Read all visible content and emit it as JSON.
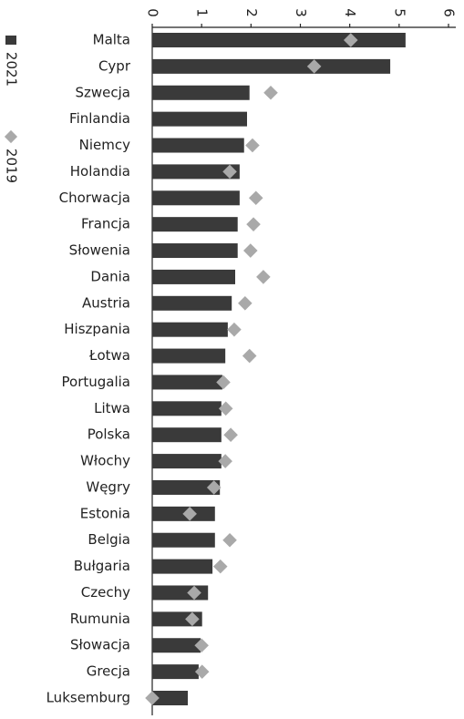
{
  "chart_data": {
    "type": "bar",
    "categories": [
      "Malta",
      "Cypr",
      "Szwecja",
      "Finlandia",
      "Niemcy",
      "Holandia",
      "Chorwacja",
      "Francja",
      "Słowenia",
      "Dania",
      "Austria",
      "Hiszpania",
      "Łotwa",
      "Portugalia",
      "Litwa",
      "Polska",
      "Włochy",
      "Węgry",
      "Estonia",
      "Belgia",
      "Bułgaria",
      "Czechy",
      "Rumunia",
      "Słowacja",
      "Grecja",
      "Luksemburg"
    ],
    "series": [
      {
        "name": "2021",
        "color": "#3a3a3a",
        "mark": "bar",
        "values": [
          5.13,
          4.82,
          1.97,
          1.92,
          1.86,
          1.77,
          1.77,
          1.73,
          1.73,
          1.68,
          1.61,
          1.53,
          1.48,
          1.42,
          1.4,
          1.4,
          1.4,
          1.37,
          1.27,
          1.27,
          1.22,
          1.13,
          1.01,
          0.98,
          0.94,
          0.72
        ]
      },
      {
        "name": "2019",
        "color": "#a9a9a9",
        "mark": "diamond",
        "values": [
          4.02,
          3.28,
          2.4,
          null,
          2.03,
          1.57,
          2.1,
          2.05,
          1.99,
          2.25,
          1.88,
          1.66,
          1.97,
          1.44,
          1.49,
          1.59,
          1.48,
          1.25,
          0.76,
          1.57,
          1.38,
          0.85,
          0.81,
          1.0,
          1.01,
          0
        ]
      }
    ],
    "xlim": [
      0,
      6
    ],
    "xticks": [
      0,
      1,
      2,
      3,
      4,
      5,
      6
    ],
    "grid": false
  }
}
